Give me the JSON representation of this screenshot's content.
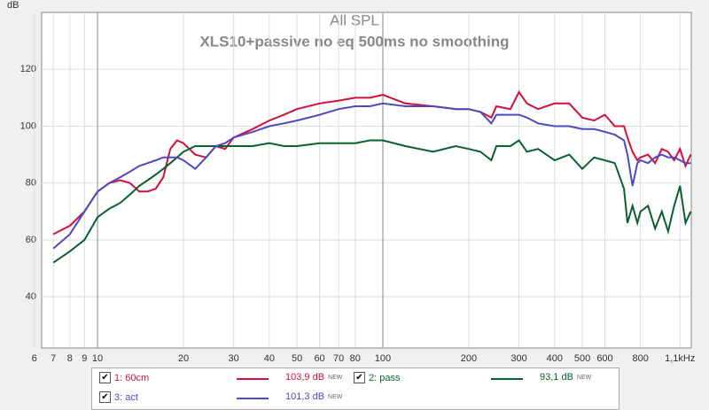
{
  "chart_data": {
    "type": "line",
    "title": "All SPL",
    "subtitle": "XLS10+passive no eq 500ms no smoothing",
    "y_label": "dB",
    "log_x": true,
    "grid": true,
    "xlim": [
      6.37,
      1205
    ],
    "ylim": [
      22,
      140
    ],
    "xticks": [
      6,
      7,
      8,
      9,
      10,
      20,
      30,
      40,
      50,
      60,
      70,
      80,
      100,
      200,
      300,
      400,
      500,
      600,
      800,
      {
        "value": 1100,
        "label": "1,1kHz"
      }
    ],
    "yticks": [
      40,
      60,
      80,
      100,
      120
    ],
    "x": [
      7,
      8,
      9,
      10,
      11,
      12,
      13,
      14,
      15,
      16,
      17,
      18,
      19,
      20,
      22,
      24,
      26,
      28,
      30,
      35,
      40,
      45,
      50,
      60,
      70,
      80,
      90,
      100,
      120,
      150,
      180,
      200,
      220,
      240,
      250,
      280,
      300,
      320,
      350,
      400,
      450,
      500,
      550,
      600,
      650,
      700,
      720,
      750,
      780,
      800,
      850,
      900,
      950,
      1000,
      1050,
      1100,
      1150,
      1200
    ],
    "series": [
      {
        "name": "1: 60cm",
        "level": "103,9 dB",
        "badge": "NEW",
        "color": "#d0103a",
        "values": [
          62,
          65,
          70,
          77,
          80,
          81,
          80,
          77,
          77,
          78,
          82,
          92,
          95,
          94,
          90,
          89,
          93,
          92,
          96,
          99,
          102,
          104,
          106,
          108,
          109,
          110,
          110,
          111,
          108,
          107,
          106,
          106,
          105,
          103,
          107,
          106,
          112,
          108,
          106,
          108,
          108,
          103,
          102,
          104,
          100,
          100,
          96,
          91,
          88,
          89,
          90,
          87,
          92,
          91,
          88,
          92,
          86,
          90
        ]
      },
      {
        "name": "2: pass",
        "level": "93,1 dB",
        "badge": "NEW",
        "color": "#0a6030",
        "values": [
          52,
          56,
          60,
          68,
          71,
          73,
          76,
          79,
          81,
          83,
          85,
          87,
          89,
          91,
          93,
          93,
          93,
          93,
          93,
          93,
          94,
          93,
          93,
          94,
          94,
          94,
          95,
          95,
          93,
          91,
          93,
          92,
          91,
          88,
          93,
          93,
          95,
          91,
          92,
          88,
          90,
          85,
          89,
          88,
          87,
          78,
          66,
          72,
          66,
          70,
          72,
          64,
          70,
          63,
          72,
          79,
          66,
          70
        ]
      },
      {
        "name": "3: act",
        "level": "101,3 dB",
        "badge": "NEW",
        "color": "#5048c0",
        "values": [
          57,
          62,
          70,
          77,
          80,
          82,
          84,
          86,
          87,
          88,
          89,
          89,
          89,
          88,
          85,
          89,
          93,
          94,
          96,
          98,
          100,
          101,
          102,
          104,
          106,
          107,
          107,
          108,
          107,
          107,
          106,
          106,
          105,
          101,
          104,
          104,
          104,
          103,
          101,
          100,
          100,
          99,
          99,
          98,
          97,
          95,
          90,
          79,
          87,
          88,
          87,
          89,
          90,
          89,
          89,
          88,
          87,
          87
        ]
      }
    ]
  }
}
